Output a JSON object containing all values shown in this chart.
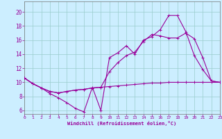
{
  "xlabel": "Windchill (Refroidissement éolien,°C)",
  "bg_color": "#cceeff",
  "line_color": "#990099",
  "grid_color": "#99cccc",
  "xlim": [
    0,
    23
  ],
  "ylim": [
    5.5,
    21.5
  ],
  "xticks": [
    0,
    1,
    2,
    3,
    4,
    5,
    6,
    7,
    8,
    9,
    10,
    11,
    12,
    13,
    14,
    15,
    16,
    17,
    18,
    19,
    20,
    21,
    22,
    23
  ],
  "yticks": [
    6,
    8,
    10,
    12,
    14,
    16,
    18,
    20
  ],
  "curve1_x": [
    0,
    1,
    2,
    3,
    4,
    5,
    6,
    7,
    8,
    9,
    10,
    11,
    12,
    13,
    14,
    15,
    16,
    17,
    18,
    19,
    20,
    21,
    22,
    23
  ],
  "curve1_y": [
    10.6,
    9.8,
    9.2,
    8.4,
    7.8,
    7.1,
    6.3,
    5.8,
    9.3,
    6.0,
    13.5,
    14.2,
    15.2,
    14.0,
    16.0,
    16.5,
    17.5,
    19.5,
    19.5,
    17.2,
    13.8,
    11.8,
    10.2,
    10.0
  ],
  "curve2_x": [
    0,
    1,
    2,
    3,
    4,
    5,
    6,
    7,
    8,
    9,
    10,
    11,
    12,
    13,
    14,
    15,
    16,
    17,
    18,
    19,
    20,
    21,
    22,
    23
  ],
  "curve2_y": [
    10.6,
    9.8,
    9.2,
    8.7,
    8.5,
    8.7,
    8.9,
    9.0,
    9.2,
    9.3,
    9.4,
    9.5,
    9.6,
    9.7,
    9.8,
    9.9,
    9.9,
    10.0,
    10.0,
    10.0,
    10.0,
    10.0,
    10.0,
    10.0
  ],
  "curve3_x": [
    0,
    1,
    2,
    3,
    4,
    5,
    6,
    7,
    8,
    9,
    10,
    11,
    12,
    13,
    14,
    15,
    16,
    17,
    18,
    19,
    20,
    21,
    22,
    23
  ],
  "curve3_y": [
    10.6,
    9.8,
    9.2,
    8.7,
    8.5,
    8.7,
    8.9,
    9.0,
    9.2,
    9.3,
    11.5,
    12.8,
    13.8,
    14.3,
    15.8,
    16.8,
    16.6,
    16.3,
    16.3,
    17.0,
    16.2,
    13.5,
    10.2,
    10.0
  ]
}
